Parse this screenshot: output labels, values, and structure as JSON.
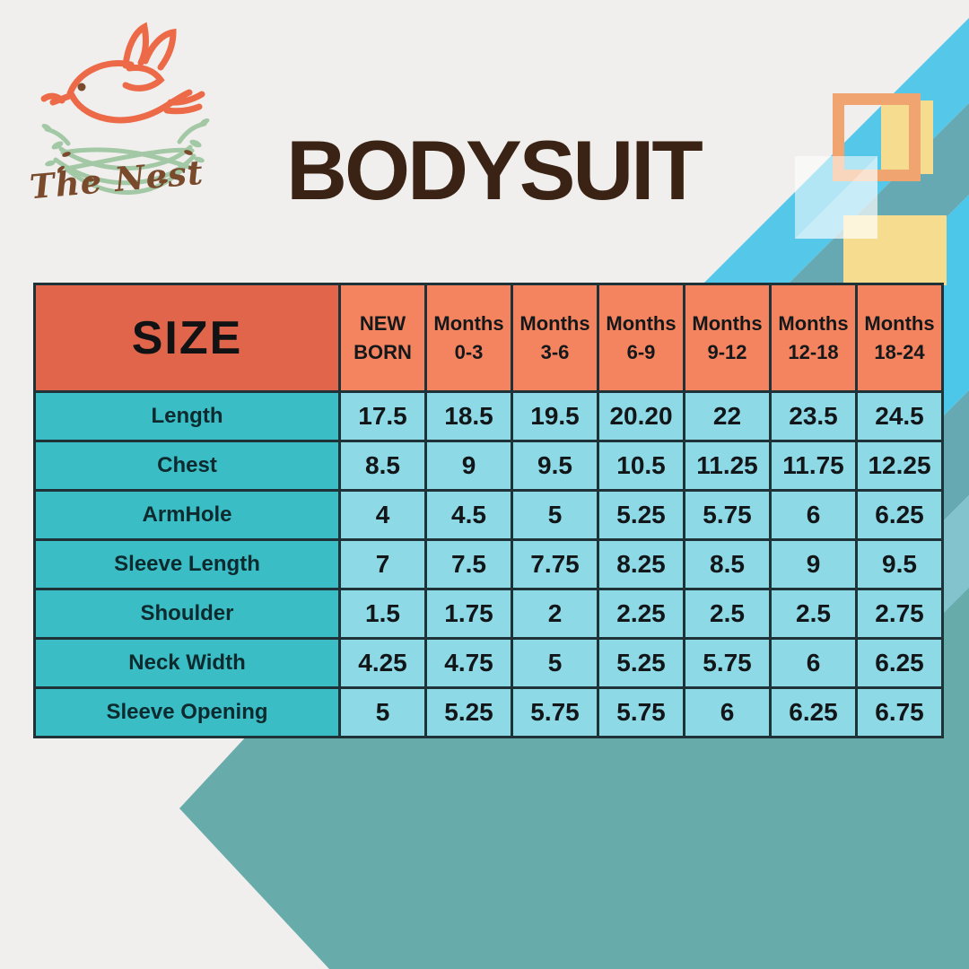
{
  "brand": {
    "name": "The Nest"
  },
  "title": "BODYSUIT",
  "colors": {
    "background": "#f0efed",
    "border": "#1f3238",
    "header_size_bg": "#e0654a",
    "header_months_bg": "#f4845f",
    "row_label_bg": "#3abdc5",
    "value_cell_bg": "#8ed9e6",
    "bottom_teal": "#68abab",
    "stripe_light_blue": "#55c8e9",
    "stripe_light_blue2": "#4cc6e9",
    "stripe_teal": "#66a9b2",
    "stripe_pale": "#82c3cd",
    "square_yellow": "#f5dc8e",
    "square_orange": "#f0a470",
    "title_brown": "#3a2314",
    "logo_orange": "#ec6a48",
    "logo_green": "#a3c8a5",
    "logo_brown": "#7a4a2c",
    "text_dark": "#121619"
  },
  "chart_data": {
    "type": "table",
    "title": "BODYSUIT",
    "size_header": "SIZE",
    "columns": [
      {
        "line1": "NEW",
        "line2": "BORN",
        "full": "NEW BORN"
      },
      {
        "line1": "Months",
        "line2": "0-3",
        "full": "Months 0-3"
      },
      {
        "line1": "Months",
        "line2": "3-6",
        "full": "Months 3-6"
      },
      {
        "line1": "Months",
        "line2": "6-9",
        "full": "Months 6-9"
      },
      {
        "line1": "Months",
        "line2": "9-12",
        "full": "Months 9-12"
      },
      {
        "line1": "Months",
        "line2": "12-18",
        "full": "Months 12-18"
      },
      {
        "line1": "Months",
        "line2": "18-24",
        "full": "Months 18-24"
      }
    ],
    "rows": [
      {
        "label": "Length",
        "values": [
          "17.5",
          "18.5",
          "19.5",
          "20.20",
          "22",
          "23.5",
          "24.5"
        ]
      },
      {
        "label": "Chest",
        "values": [
          "8.5",
          "9",
          "9.5",
          "10.5",
          "11.25",
          "11.75",
          "12.25"
        ]
      },
      {
        "label": "ArmHole",
        "values": [
          "4",
          "4.5",
          "5",
          "5.25",
          "5.75",
          "6",
          "6.25"
        ]
      },
      {
        "label": "Sleeve Length",
        "values": [
          "7",
          "7.5",
          "7.75",
          "8.25",
          "8.5",
          "9",
          "9.5"
        ]
      },
      {
        "label": "Shoulder",
        "values": [
          "1.5",
          "1.75",
          "2",
          "2.25",
          "2.5",
          "2.5",
          "2.75"
        ]
      },
      {
        "label": "Neck Width",
        "values": [
          "4.25",
          "4.75",
          "5",
          "5.25",
          "5.75",
          "6",
          "6.25"
        ]
      },
      {
        "label": "Sleeve Opening",
        "values": [
          "5",
          "5.25",
          "5.75",
          "5.75",
          "6",
          "6.25",
          "6.75"
        ]
      }
    ]
  }
}
